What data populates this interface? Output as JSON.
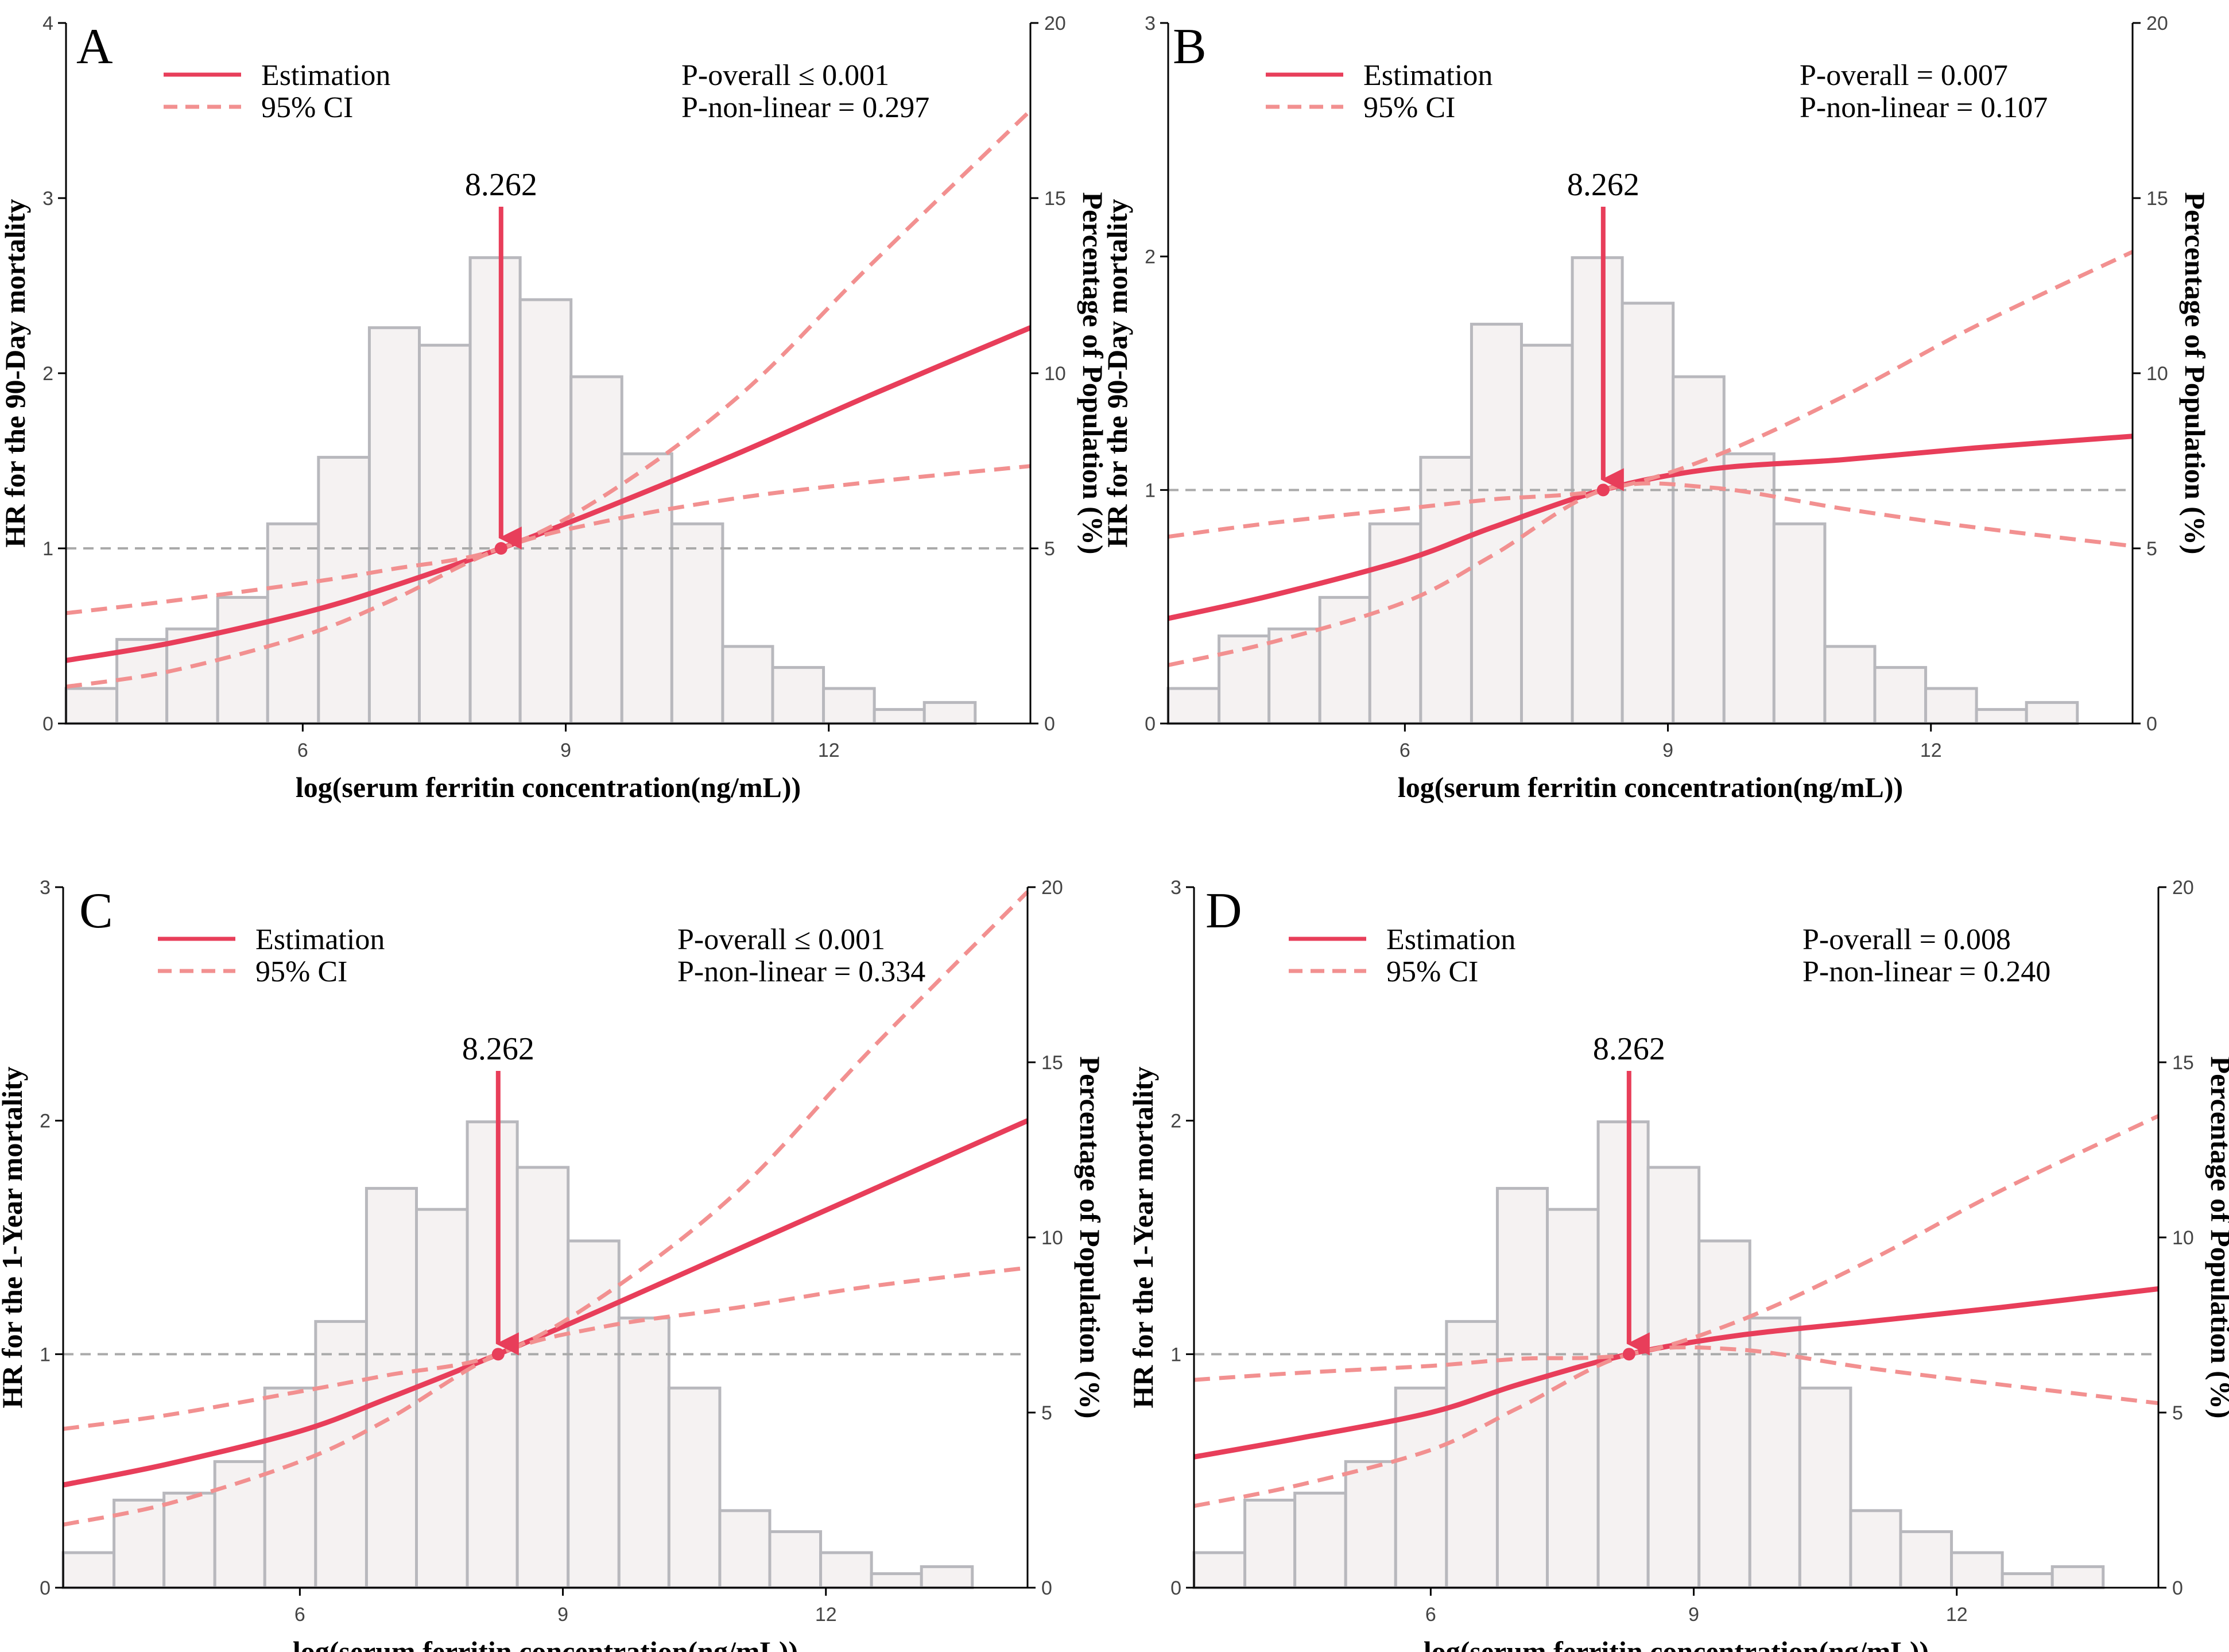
{
  "figure": {
    "background": "#ffffff",
    "estimate_color": "#e83e5a",
    "ci_color": "#f29090",
    "bar_fill": "#f5f2f2",
    "bar_stroke": "#b8b8bd",
    "ref_line_color": "#aaaaaa",
    "arrow_color": "#e83e5a"
  },
  "chart_data": [
    {
      "type": "line",
      "panel": "A",
      "xlabel": "log(serum ferritin concentration(ng/mL))",
      "ylabel": "HR for the 90-Day mortality",
      "y2label": "Percentage of Population (%)",
      "xlim": [
        3.3,
        14.3
      ],
      "ylim": [
        0,
        4
      ],
      "y2lim": [
        0,
        20
      ],
      "xticks": [
        "6",
        "9",
        "12"
      ],
      "xtick_values": [
        6,
        9,
        12
      ],
      "yticks": [
        "0",
        "1",
        "2",
        "3",
        "4"
      ],
      "ytick_values": [
        0,
        1,
        2,
        3,
        4
      ],
      "y2ticks": [
        "0",
        "5",
        "10",
        "15",
        "20"
      ],
      "y2tick_values": [
        0,
        5,
        10,
        15,
        20
      ],
      "legend": {
        "estimation": "Estimation",
        "ci": "95% CI"
      },
      "p_overall": "P-overall ≤ 0.001",
      "p_nonlinear": "P-non-linear = 0.297",
      "annotation": "8.262",
      "ref_x": 8.262,
      "ref_y": 1,
      "histogram": {
        "bin_edges": [
          3.3,
          3.88,
          4.45,
          5.03,
          5.6,
          6.18,
          6.76,
          7.33,
          7.91,
          8.48,
          9.06,
          9.64,
          10.21,
          10.79,
          11.36,
          11.94,
          12.52,
          13.09,
          13.67
        ],
        "percent": [
          1.0,
          2.4,
          2.7,
          3.6,
          5.7,
          7.6,
          11.3,
          10.8,
          13.3,
          12.1,
          9.9,
          7.7,
          5.7,
          2.2,
          1.6,
          1.0,
          0.4,
          0.6
        ]
      },
      "series": [
        {
          "name": "Estimation",
          "x": [
            3.3,
            4.5,
            6.0,
            7.0,
            8.262,
            9.5,
            11.0,
            12.5,
            14.3
          ],
          "y": [
            0.36,
            0.46,
            0.63,
            0.78,
            1.0,
            1.24,
            1.55,
            1.88,
            2.26
          ]
        },
        {
          "name": "95% CI upper",
          "x": [
            3.3,
            4.5,
            6.0,
            7.0,
            8.262,
            9.5,
            11.0,
            12.5,
            14.3
          ],
          "y": [
            0.63,
            0.7,
            0.8,
            0.88,
            1.0,
            1.32,
            1.88,
            2.63,
            3.5
          ]
        },
        {
          "name": "95% CI lower",
          "x": [
            3.3,
            4.5,
            6.0,
            7.0,
            8.262,
            9.5,
            11.0,
            12.5,
            14.3
          ],
          "y": [
            0.21,
            0.3,
            0.5,
            0.7,
            1.0,
            1.16,
            1.29,
            1.38,
            1.47
          ]
        }
      ]
    },
    {
      "type": "line",
      "panel": "B",
      "xlabel": "log(serum ferritin concentration(ng/mL))",
      "ylabel": "HR for the 90-Day mortality",
      "y2label": "Percentage of Population (%)",
      "xlim": [
        3.3,
        14.3
      ],
      "ylim": [
        0,
        3
      ],
      "y2lim": [
        0,
        20
      ],
      "xticks": [
        "6",
        "9",
        "12"
      ],
      "xtick_values": [
        6,
        9,
        12
      ],
      "yticks": [
        "0",
        "1",
        "2",
        "3"
      ],
      "ytick_values": [
        0,
        1,
        2,
        3
      ],
      "y2ticks": [
        "0",
        "5",
        "10",
        "15",
        "20"
      ],
      "y2tick_values": [
        0,
        5,
        10,
        15,
        20
      ],
      "legend": {
        "estimation": "Estimation",
        "ci": "95% CI"
      },
      "p_overall": "P-overall = 0.007",
      "p_nonlinear": "P-non-linear = 0.107",
      "annotation": "8.262",
      "ref_x": 8.262,
      "ref_y": 1,
      "histogram": {
        "bin_edges": [
          3.3,
          3.88,
          4.45,
          5.03,
          5.6,
          6.18,
          6.76,
          7.33,
          7.91,
          8.48,
          9.06,
          9.64,
          10.21,
          10.79,
          11.36,
          11.94,
          12.52,
          13.09,
          13.67
        ],
        "percent": [
          1.0,
          2.5,
          2.7,
          3.6,
          5.7,
          7.6,
          11.4,
          10.8,
          13.3,
          12.0,
          9.9,
          7.7,
          5.7,
          2.2,
          1.6,
          1.0,
          0.4,
          0.6
        ]
      },
      "series": [
        {
          "name": "Estimation",
          "x": [
            3.3,
            4.5,
            6.0,
            7.0,
            8.262,
            9.5,
            11.0,
            12.5,
            14.3
          ],
          "y": [
            0.45,
            0.55,
            0.7,
            0.84,
            1.0,
            1.09,
            1.13,
            1.18,
            1.23
          ]
        },
        {
          "name": "95% CI upper",
          "x": [
            3.3,
            4.5,
            6.0,
            7.0,
            8.262,
            9.5,
            11.0,
            12.5,
            14.3
          ],
          "y": [
            0.8,
            0.86,
            0.92,
            0.96,
            1.0,
            1.14,
            1.4,
            1.7,
            2.02
          ]
        },
        {
          "name": "95% CI lower",
          "x": [
            3.3,
            4.5,
            6.0,
            7.0,
            8.262,
            9.5,
            11.0,
            12.5,
            14.3
          ],
          "y": [
            0.25,
            0.35,
            0.52,
            0.72,
            1.0,
            1.01,
            0.92,
            0.84,
            0.76
          ]
        }
      ]
    },
    {
      "type": "line",
      "panel": "C",
      "xlabel": "log(serum ferritin concentration(ng/mL))",
      "ylabel": "HR for the 1-Year mortality",
      "y2label": "Percentage of Population (%)",
      "xlim": [
        3.3,
        14.3
      ],
      "ylim": [
        0,
        3
      ],
      "y2lim": [
        0,
        20
      ],
      "xticks": [
        "6",
        "9",
        "12"
      ],
      "xtick_values": [
        6,
        9,
        12
      ],
      "yticks": [
        "0",
        "1",
        "2",
        "3"
      ],
      "ytick_values": [
        0,
        1,
        2,
        3
      ],
      "y2ticks": [
        "0",
        "5",
        "10",
        "15",
        "20"
      ],
      "y2tick_values": [
        0,
        5,
        10,
        15,
        20
      ],
      "legend": {
        "estimation": "Estimation",
        "ci": "95% CI"
      },
      "p_overall": "P-overall ≤ 0.001",
      "p_nonlinear": "P-non-linear = 0.334",
      "annotation": "8.262",
      "ref_x": 8.262,
      "ref_y": 1,
      "histogram": {
        "bin_edges": [
          3.3,
          3.88,
          4.45,
          5.03,
          5.6,
          6.18,
          6.76,
          7.33,
          7.91,
          8.48,
          9.06,
          9.64,
          10.21,
          10.79,
          11.36,
          11.94,
          12.52,
          13.09,
          13.67
        ],
        "percent": [
          1.0,
          2.5,
          2.7,
          3.6,
          5.7,
          7.6,
          11.4,
          10.8,
          13.3,
          12.0,
          9.9,
          7.7,
          5.7,
          2.2,
          1.6,
          1.0,
          0.4,
          0.6
        ]
      },
      "series": [
        {
          "name": "Estimation",
          "x": [
            3.3,
            4.5,
            6.0,
            7.0,
            8.262,
            9.5,
            11.0,
            12.5,
            14.3
          ],
          "y": [
            0.44,
            0.53,
            0.67,
            0.81,
            1.0,
            1.2,
            1.45,
            1.7,
            2.0
          ]
        },
        {
          "name": "95% CI upper",
          "x": [
            3.3,
            4.5,
            6.0,
            7.0,
            8.262,
            9.5,
            11.0,
            12.5,
            14.3
          ],
          "y": [
            0.68,
            0.74,
            0.84,
            0.91,
            1.0,
            1.26,
            1.7,
            2.3,
            2.98
          ]
        },
        {
          "name": "95% CI lower",
          "x": [
            3.3,
            4.5,
            6.0,
            7.0,
            8.262,
            9.5,
            11.0,
            12.5,
            14.3
          ],
          "y": [
            0.27,
            0.36,
            0.54,
            0.72,
            1.0,
            1.12,
            1.2,
            1.29,
            1.37
          ]
        }
      ]
    },
    {
      "type": "line",
      "panel": "D",
      "xlabel": "log(serum ferritin concentration(ng/mL))",
      "ylabel": "HR for the 1-Year mortality",
      "y2label": "Percentage of Population (%)",
      "xlim": [
        3.3,
        14.3
      ],
      "ylim": [
        0,
        3
      ],
      "y2lim": [
        0,
        20
      ],
      "xticks": [
        "6",
        "9",
        "12"
      ],
      "xtick_values": [
        6,
        9,
        12
      ],
      "yticks": [
        "0",
        "1",
        "2",
        "3"
      ],
      "ytick_values": [
        0,
        1,
        2,
        3
      ],
      "y2ticks": [
        "0",
        "5",
        "10",
        "15",
        "20"
      ],
      "y2tick_values": [
        0,
        5,
        10,
        15,
        20
      ],
      "legend": {
        "estimation": "Estimation",
        "ci": "95% CI"
      },
      "p_overall": "P-overall = 0.008",
      "p_nonlinear": "P-non-linear = 0.240",
      "annotation": "8.262",
      "ref_x": 8.262,
      "ref_y": 1,
      "histogram": {
        "bin_edges": [
          3.3,
          3.88,
          4.45,
          5.03,
          5.6,
          6.18,
          6.76,
          7.33,
          7.91,
          8.48,
          9.06,
          9.64,
          10.21,
          10.79,
          11.36,
          11.94,
          12.52,
          13.09,
          13.67
        ],
        "percent": [
          1.0,
          2.5,
          2.7,
          3.6,
          5.7,
          7.6,
          11.4,
          10.8,
          13.3,
          12.0,
          9.9,
          7.7,
          5.7,
          2.2,
          1.6,
          1.0,
          0.4,
          0.6
        ]
      },
      "series": [
        {
          "name": "Estimation",
          "x": [
            3.3,
            4.5,
            6.0,
            7.0,
            8.262,
            9.5,
            11.0,
            12.5,
            14.3
          ],
          "y": [
            0.56,
            0.64,
            0.75,
            0.87,
            1.0,
            1.08,
            1.14,
            1.2,
            1.28
          ]
        },
        {
          "name": "95% CI upper",
          "x": [
            3.3,
            4.5,
            6.0,
            7.0,
            8.262,
            9.5,
            11.0,
            12.5,
            14.3
          ],
          "y": [
            0.89,
            0.92,
            0.95,
            0.98,
            1.0,
            1.14,
            1.4,
            1.7,
            2.02
          ]
        },
        {
          "name": "95% CI lower",
          "x": [
            3.3,
            4.5,
            6.0,
            7.0,
            8.262,
            9.5,
            11.0,
            12.5,
            14.3
          ],
          "y": [
            0.35,
            0.44,
            0.59,
            0.77,
            1.0,
            1.02,
            0.94,
            0.87,
            0.79
          ]
        }
      ]
    }
  ]
}
